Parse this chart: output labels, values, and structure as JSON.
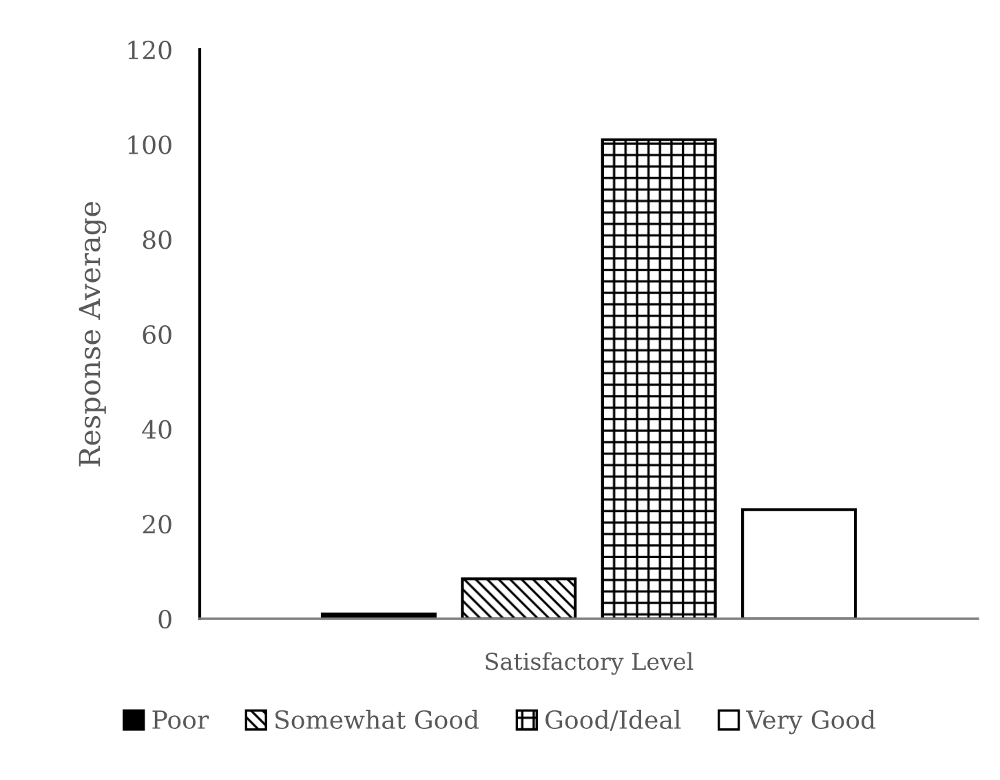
{
  "chart_data": {
    "type": "bar",
    "xlabel": "Satisfactory Level",
    "ylabel": "Response Average",
    "categories": [
      null
    ],
    "series": [
      {
        "name": "Poor",
        "color": "#000000",
        "values": [
          1
        ]
      },
      {
        "name": "Somewhat Good",
        "color": "#ffffff",
        "values": [
          8.4
        ]
      },
      {
        "name": "Good/Ideal",
        "color": "#ffffff",
        "values": [
          101
        ]
      },
      {
        "name": "Very Good",
        "color": "#ffffff",
        "values": [
          23
        ]
      }
    ],
    "ylim": [
      0,
      120
    ],
    "yticks": [
      0,
      20,
      40,
      60,
      80,
      100,
      120
    ],
    "grid": false,
    "legend": "bottom"
  }
}
